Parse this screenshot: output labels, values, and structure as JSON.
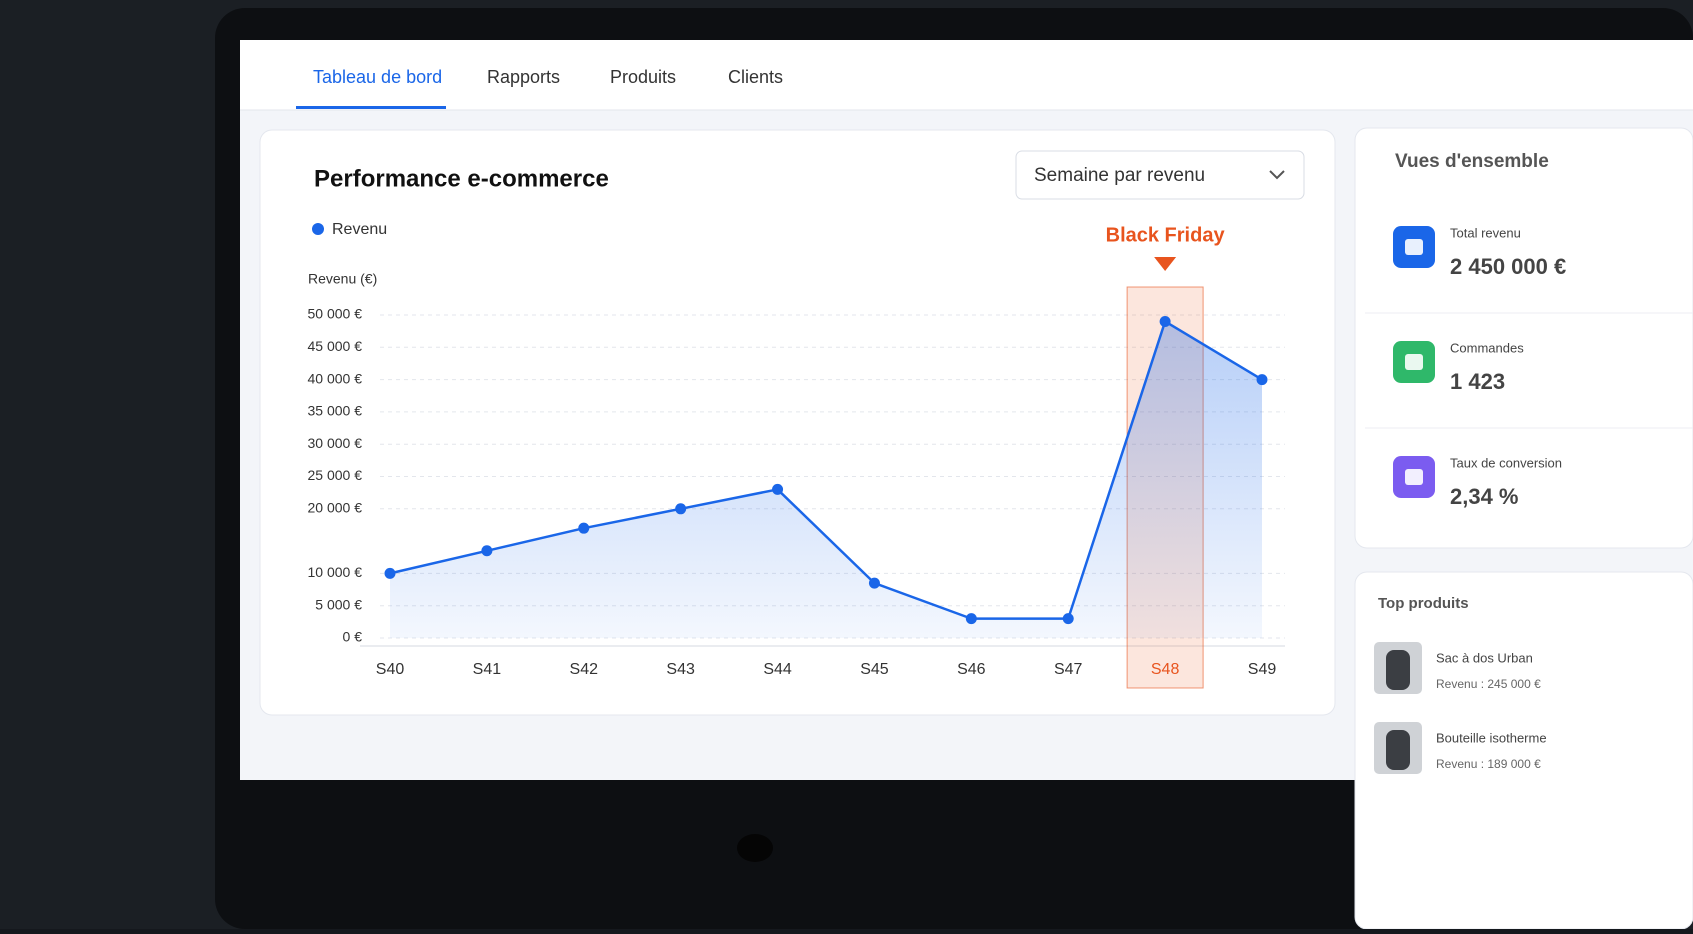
{
  "nav": {
    "tabs": [
      {
        "label": "Tableau de bord",
        "active": true
      },
      {
        "label": "Rapports"
      },
      {
        "label": "Produits"
      },
      {
        "label": "Clients"
      }
    ]
  },
  "chart_data": {
    "type": "line",
    "title": "Performance e-commerce",
    "y_label": "Revenu (€)",
    "categories": [
      "S40",
      "S41",
      "S42",
      "S43",
      "S44",
      "S45",
      "S46",
      "S47",
      "S48",
      "S49"
    ],
    "series": [
      {
        "name": "Revenu",
        "color": "#1a66e8",
        "values": [
          10000,
          13500,
          17000,
          20000,
          23000,
          8500,
          3000,
          3000,
          49000,
          40000
        ]
      }
    ],
    "ylim": [
      0,
      50000
    ],
    "yticks": [
      {
        "value": 0,
        "label": "0 €"
      },
      {
        "value": 5000,
        "label": "5 000 €"
      },
      {
        "value": 10000,
        "label": "10 000 €"
      },
      {
        "value": 20000,
        "label": "20 000 €"
      },
      {
        "value": 25000,
        "label": "25 000 €"
      },
      {
        "value": 30000,
        "label": "30 000 €"
      },
      {
        "value": 35000,
        "label": "35 000 €"
      },
      {
        "value": 40000,
        "label": "40 000 €"
      },
      {
        "value": 45000,
        "label": "45 000 €"
      },
      {
        "value": 50000,
        "label": "50 000 €"
      }
    ],
    "grid": true,
    "legend": "top-left",
    "annotation": {
      "text": "Black Friday",
      "category": "S48",
      "color": "#e8541e"
    }
  },
  "dropdown": "Semaine par revenu",
  "overview": {
    "title": "Vues d'ensemble",
    "items": [
      {
        "label": "Total revenu",
        "value": "2 450 000 €",
        "color": "#1a66e8"
      },
      {
        "label": "Commandes",
        "value": "1 423",
        "color": "#2fb86a"
      },
      {
        "label": "Taux de conversion",
        "value": "2,34 %",
        "color": "#7b5cf0"
      }
    ]
  },
  "top_products": {
    "title": "Top produits",
    "items": [
      {
        "name": "Sac à dos Urban",
        "revenue": "Revenu : 245 000 €"
      },
      {
        "name": "Bouteille isotherme",
        "revenue": "Revenu : 189 000 €"
      }
    ]
  }
}
